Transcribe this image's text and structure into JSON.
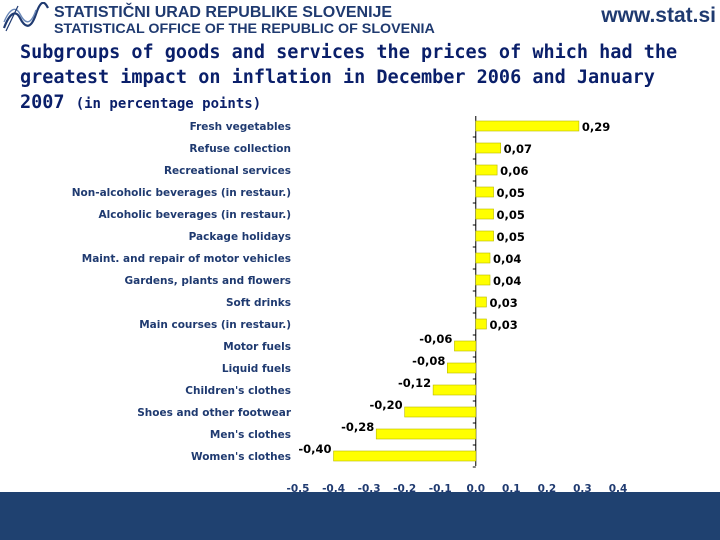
{
  "header": {
    "org_sl": "STATISTIČNI URAD REPUBLIKE SLOVENIJE",
    "org_en": "STATISTICAL OFFICE OF THE REPUBLIC OF SLOVENIA",
    "website": "www.stat.si",
    "logo_icon": "wave-logo-icon"
  },
  "title": {
    "main": "Subgroups of goods and services the prices of which had the greatest impact on inflation in December 2006 and January 2007",
    "sub": "(in percentage points)"
  },
  "colors": {
    "bar": "#ffff00",
    "bar_stroke": "#b8b800",
    "title": "#0a1f6a",
    "label": "#1f3a70",
    "footer": "#1f4170"
  },
  "chart_data": {
    "type": "bar",
    "orientation": "horizontal",
    "categories": [
      "Fresh vegetables",
      "Refuse collection",
      "Recreational services",
      "Non-alcoholic beverages (in restaur.)",
      "Alcoholic beverages (in restaur.)",
      "Package holidays",
      "Maint. and repair of motor vehicles",
      "Gardens, plants and flowers",
      "Soft drinks",
      "Main courses (in restaur.)",
      "Motor fuels",
      "Liquid fuels",
      "Children's clothes",
      "Shoes and other footwear",
      "Men's clothes",
      "Women's clothes"
    ],
    "values": [
      0.29,
      0.07,
      0.06,
      0.05,
      0.05,
      0.05,
      0.04,
      0.04,
      0.03,
      0.03,
      -0.06,
      -0.08,
      -0.12,
      -0.2,
      -0.28,
      -0.4
    ],
    "value_labels": [
      "0,29",
      "0,07",
      "0,06",
      "0,05",
      "0,05",
      "0,05",
      "0,04",
      "0,04",
      "0,03",
      "0,03",
      "-0,06",
      "-0,08",
      "-0,12",
      "-0,20",
      "-0,28",
      "-0,40"
    ],
    "xlim": [
      -0.5,
      0.4
    ],
    "xticks": [
      -0.5,
      -0.4,
      -0.3,
      -0.2,
      -0.1,
      0.0,
      0.1,
      0.2,
      0.3,
      0.4
    ],
    "xtick_labels": [
      "-0,5",
      "-0,4",
      "-0,3",
      "-0,2",
      "-0,1",
      "0,0",
      "0,1",
      "0,2",
      "0,3",
      "0,4"
    ],
    "grid": false,
    "legend": "none"
  }
}
